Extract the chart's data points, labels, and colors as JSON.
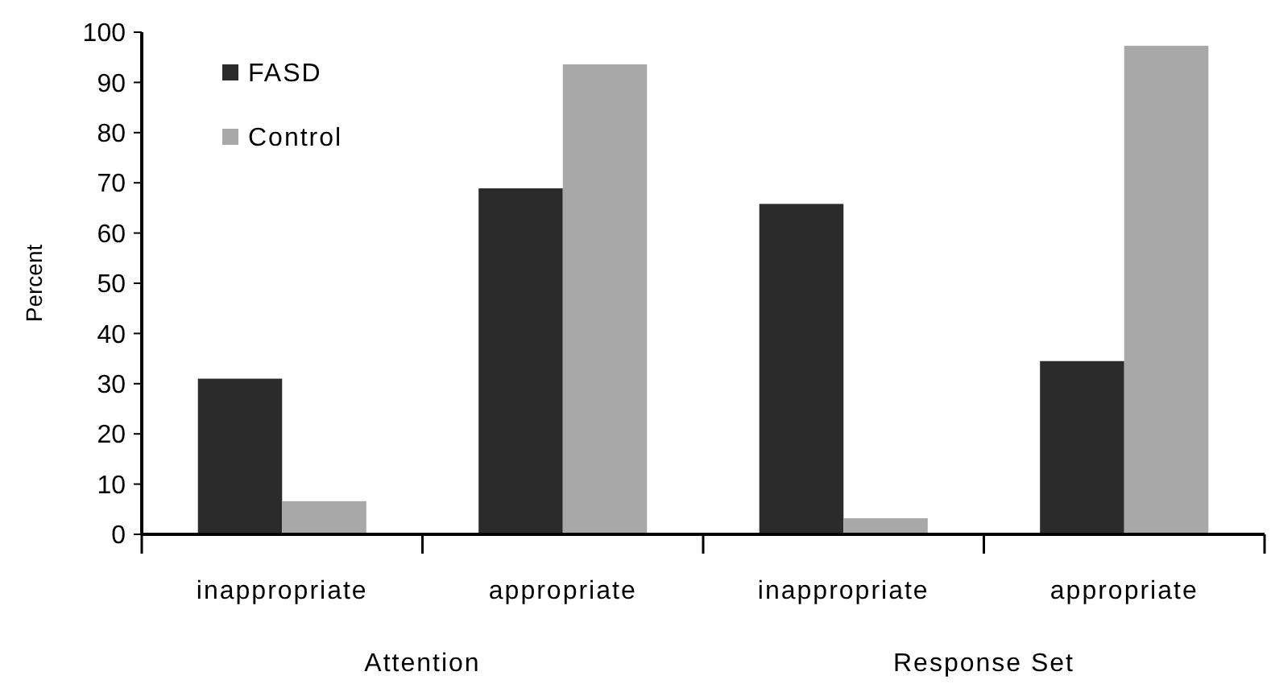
{
  "chart_data": {
    "type": "bar",
    "ylabel": "Percent",
    "categories": [
      "inappropriate",
      "appropriate",
      "inappropriate",
      "appropriate"
    ],
    "series": [
      {
        "name": "FASD",
        "color": "#2b2b2b",
        "values": [
          31,
          68.9,
          65.8,
          34.5
        ]
      },
      {
        "name": "Control",
        "color": "#a8a8a8",
        "values": [
          6.6,
          93.6,
          3.2,
          97.3
        ]
      }
    ],
    "ylim": [
      0,
      100
    ],
    "yticks": [
      0,
      10,
      20,
      30,
      40,
      50,
      60,
      70,
      80,
      90,
      100
    ],
    "grid": false,
    "legend": "top left",
    "annotations": [
      "Attention",
      "Response Set"
    ]
  }
}
